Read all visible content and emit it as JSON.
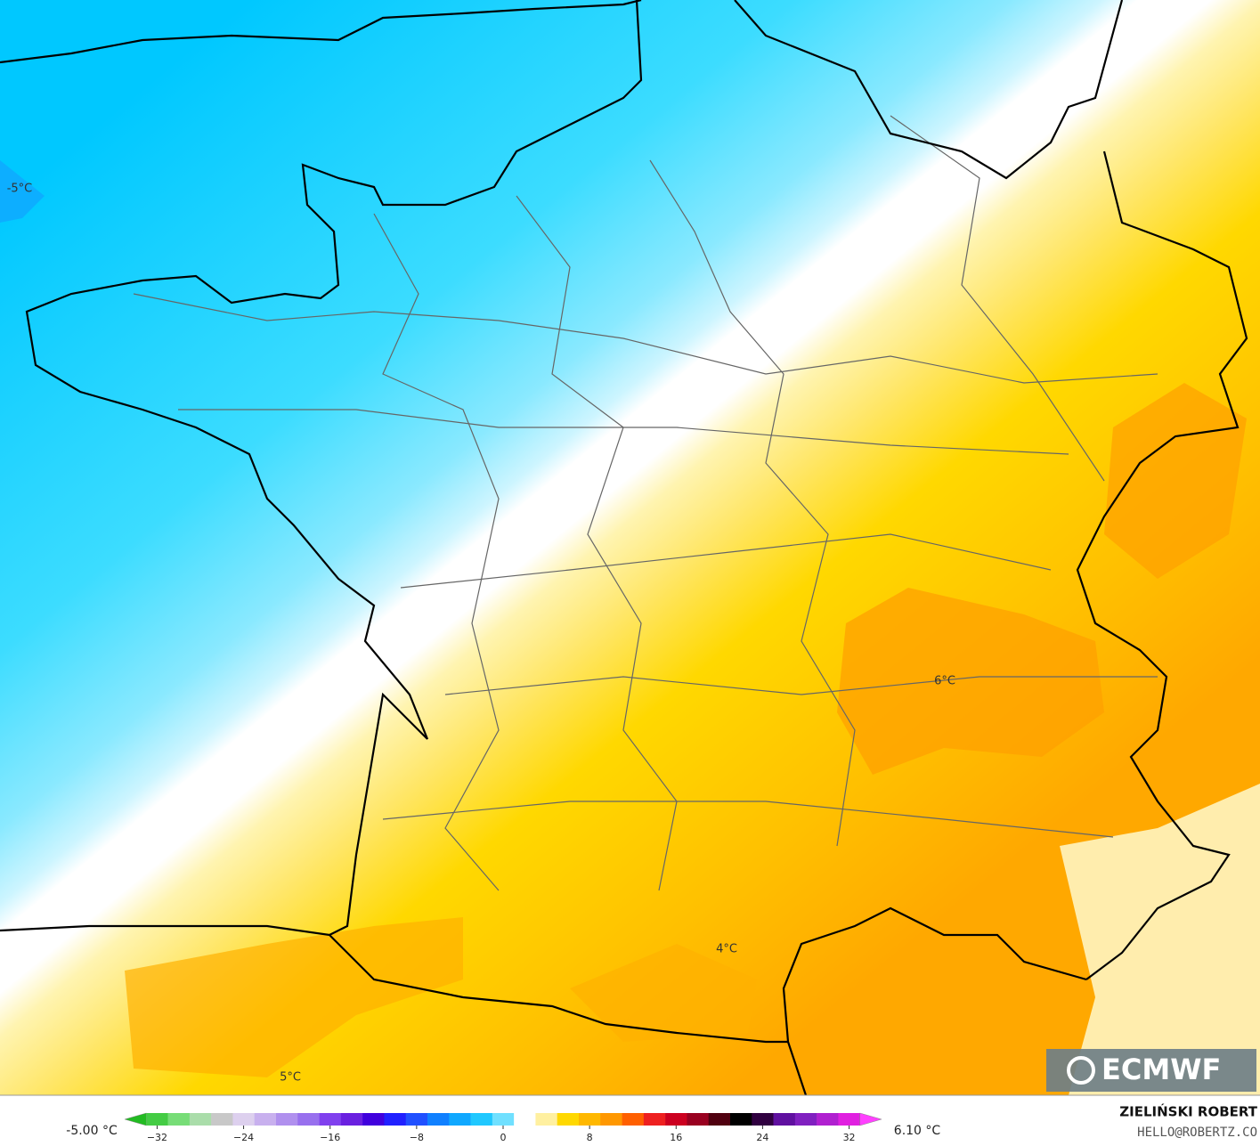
{
  "map": {
    "labels": [
      {
        "text": "-5°C"
      },
      {
        "text": "6°C"
      },
      {
        "text": "4°C"
      },
      {
        "text": "5°C"
      }
    ],
    "logo": "ECMWF"
  },
  "colorbar": {
    "min_label": "-5.00 °C",
    "max_label": "6.10 °C",
    "lim": [
      -35,
      35
    ],
    "ticks": [
      {
        "value": -32,
        "label": "−32"
      },
      {
        "value": -24,
        "label": "−24"
      },
      {
        "value": -16,
        "label": "−16"
      },
      {
        "value": -8,
        "label": "−8"
      },
      0,
      8,
      16,
      24,
      32
    ],
    "colors": [
      "#22bb22",
      "#44cc44",
      "#77dd77",
      "#aaddaa",
      "#c8c8c8",
      "#ddd0ee",
      "#c8b0ee",
      "#b090ee",
      "#9870ee",
      "#8040ee",
      "#6a20e0",
      "#4000dd",
      "#2020ff",
      "#2050ff",
      "#1080ff",
      "#10a8ff",
      "#20c8ff",
      "#70e0ff",
      "#ffffff",
      "#fff0a0",
      "#ffd800",
      "#ffb800",
      "#ff9800",
      "#ff6000",
      "#ee2020",
      "#cc0020",
      "#990020",
      "#500010",
      "#000000",
      "#300040",
      "#6010a0",
      "#8020c0",
      "#b020d0",
      "#e020e0",
      "#ff40ff"
    ]
  },
  "credit": {
    "author": "ZIELIŃSKI ROBERT",
    "contact": "HELLO@ROBERTZ.CO"
  }
}
